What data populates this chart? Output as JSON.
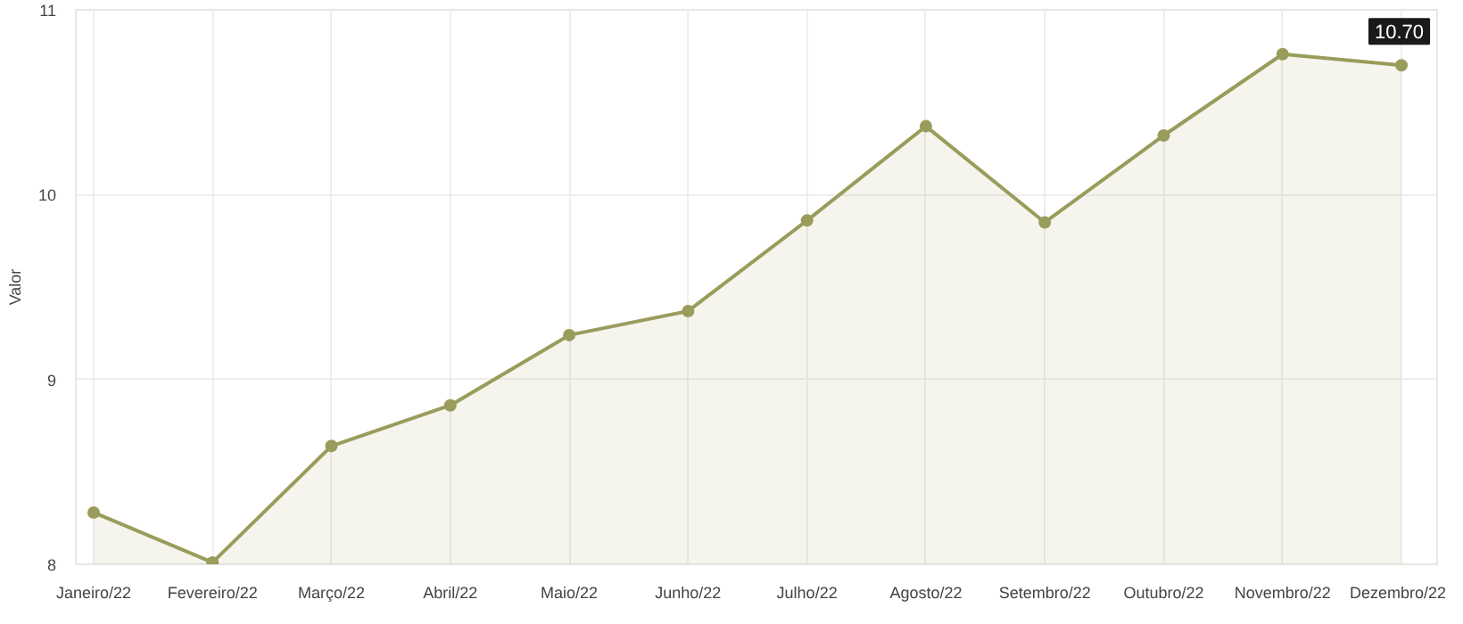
{
  "chart_data": {
    "type": "area",
    "ylabel": "Valor",
    "categories": [
      "Janeiro/22",
      "Fevereiro/22",
      "Março/22",
      "Abril/22",
      "Maio/22",
      "Junho/22",
      "Julho/22",
      "Agosto/22",
      "Setembro/22",
      "Outubro/22",
      "Novembro/22",
      "Dezembro/22"
    ],
    "series": [
      {
        "color": "#9a9c5c",
        "values": [
          8.28,
          8.01,
          8.64,
          8.86,
          9.24,
          9.37,
          9.86,
          10.37,
          9.85,
          10.32,
          10.76,
          10.7
        ]
      }
    ],
    "ylim": [
      8,
      11
    ],
    "yticks": [
      8,
      9,
      10,
      11
    ],
    "grid": true,
    "marker": "circle",
    "annotations": [
      {
        "text": "10.70",
        "x": "Dezembro/22",
        "y": 10.7
      }
    ]
  }
}
